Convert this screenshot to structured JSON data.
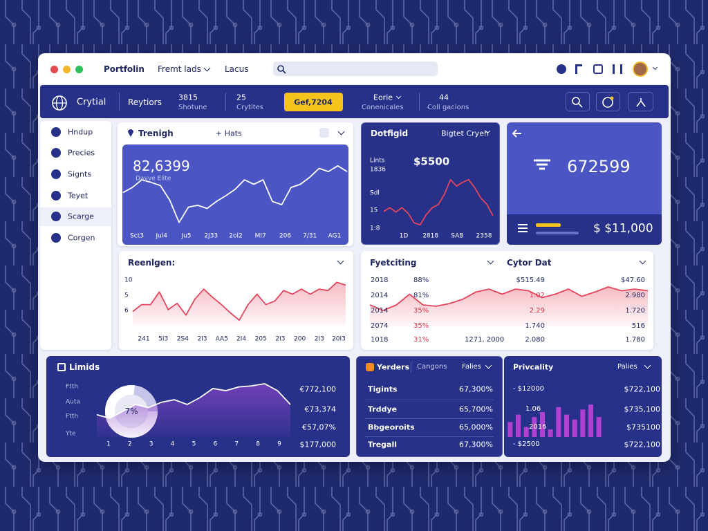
{
  "topbar": {
    "tabs": [
      "Portfolin",
      "Fremt lads",
      "Lacus"
    ]
  },
  "nav": {
    "brand": "Crytial",
    "link": "Reytiors",
    "stats": [
      {
        "value": "3815",
        "label": "Shotune"
      },
      {
        "value": "25",
        "label": "Crytites"
      }
    ],
    "button": "Gef,7204",
    "menus": [
      {
        "value": "Eorie",
        "label": "Conenicales"
      },
      {
        "value": "44",
        "label": "Coll gacions"
      }
    ]
  },
  "sidebar": [
    "Hndup",
    "Precies",
    "Signts",
    "Teyet",
    "Scarge",
    "Corgen"
  ],
  "trend": {
    "title": "Trenigh",
    "action": "+ Hats",
    "value": "82,6399",
    "caption": "Dayve Elite",
    "x_labels": [
      "Sct3",
      "Jul4",
      "Ju5",
      "2J33",
      "2ol2",
      "MI7",
      "206",
      "7/31",
      "AG1"
    ],
    "ylim": [
      0,
      100
    ],
    "values": [
      56,
      64,
      76,
      72,
      67,
      44,
      9,
      33,
      36,
      31,
      42,
      51,
      61,
      76,
      69,
      76,
      42,
      37,
      64,
      69,
      80,
      94,
      89,
      98,
      89
    ]
  },
  "dotfigid": {
    "title": "Dotfigid",
    "menu": "Bigtet Cryeh",
    "value": "$5500",
    "y_labels": [
      "Lints",
      "1836",
      "Sdl",
      "15",
      "1:8"
    ],
    "x_labels": [
      "1D",
      "2818",
      "SAB",
      "2358"
    ],
    "ylim": [
      0,
      100
    ],
    "values": [
      31,
      38,
      30,
      38,
      28,
      10,
      6,
      25,
      38,
      44,
      63,
      90,
      78,
      85,
      90,
      75,
      56,
      44,
      23
    ]
  },
  "summary": {
    "value": "672599",
    "total": "$ $11,000"
  },
  "reenlgen": {
    "title": "Reenlgen:",
    "y_labels": [
      "10",
      "5",
      "6"
    ],
    "x_labels": [
      "241",
      "5I3",
      "2S4",
      "2I3",
      "AA5",
      "2I4",
      "205",
      "2I3",
      "200",
      "2I3",
      "20I3"
    ],
    "ylim": [
      0,
      100
    ],
    "values": [
      31,
      46,
      46,
      74,
      35,
      49,
      23,
      58,
      80,
      62,
      46,
      28,
      12,
      46,
      69,
      46,
      54,
      77,
      69,
      80,
      69,
      80,
      77,
      95,
      89
    ]
  },
  "forecast": {
    "title": "Fyetciting",
    "subtitle": "Cytor Dat",
    "note": "1271, 2000",
    "rows": [
      [
        "2018",
        "88%",
        "$515.49",
        "$47.60"
      ],
      [
        "2014",
        "81%",
        "1.02",
        "2.980"
      ],
      [
        "2014",
        "35%",
        "2.29",
        "1.720"
      ],
      [
        "2074",
        "35%",
        "1.740",
        "516"
      ],
      [
        "1018",
        "31%",
        "2.080",
        "1.780"
      ]
    ],
    "ylim": [
      0,
      100
    ],
    "values": [
      50,
      37,
      50,
      75,
      50,
      47,
      53,
      63,
      80,
      87,
      75,
      87,
      83,
      67,
      75,
      87,
      70,
      80,
      92,
      83,
      87,
      83
    ]
  },
  "limids": {
    "title": "Limids",
    "donut_label": "7%",
    "y_labels": [
      "Ftth",
      "Auta",
      "Ftth",
      "Yte"
    ],
    "x_labels": [
      "1",
      "2",
      "3",
      "4",
      "5",
      "6",
      "7",
      "8",
      "9"
    ],
    "amounts": [
      "€772,100",
      "€73,374",
      "€57,07%",
      "$177,000"
    ],
    "ylim": [
      0,
      100
    ],
    "values": [
      42,
      35,
      48,
      61,
      55,
      65,
      70,
      61,
      74,
      91,
      87,
      94,
      96,
      100,
      87,
      61
    ]
  },
  "traders": {
    "title": "Yerders",
    "tab": "Cangons",
    "menu": "Falies",
    "rows": [
      [
        "Tigints",
        "67,300%"
      ],
      [
        "Trddye",
        "65,700%"
      ],
      [
        "Bbgeoroits",
        "65,000%"
      ],
      [
        "Tregall",
        "67,300%"
      ]
    ]
  },
  "privcality": {
    "title": "Privcality",
    "menu": "Palies",
    "left_labels": [
      "- $12000",
      "1.06",
      "2016",
      "- $2500"
    ],
    "amounts": [
      "$722,100",
      "$735,100",
      "$735100",
      "$722,100"
    ],
    "ylim": [
      0,
      100
    ],
    "values": [
      30,
      45,
      20,
      40,
      50,
      15,
      60,
      45,
      35,
      55,
      65,
      40
    ]
  }
}
